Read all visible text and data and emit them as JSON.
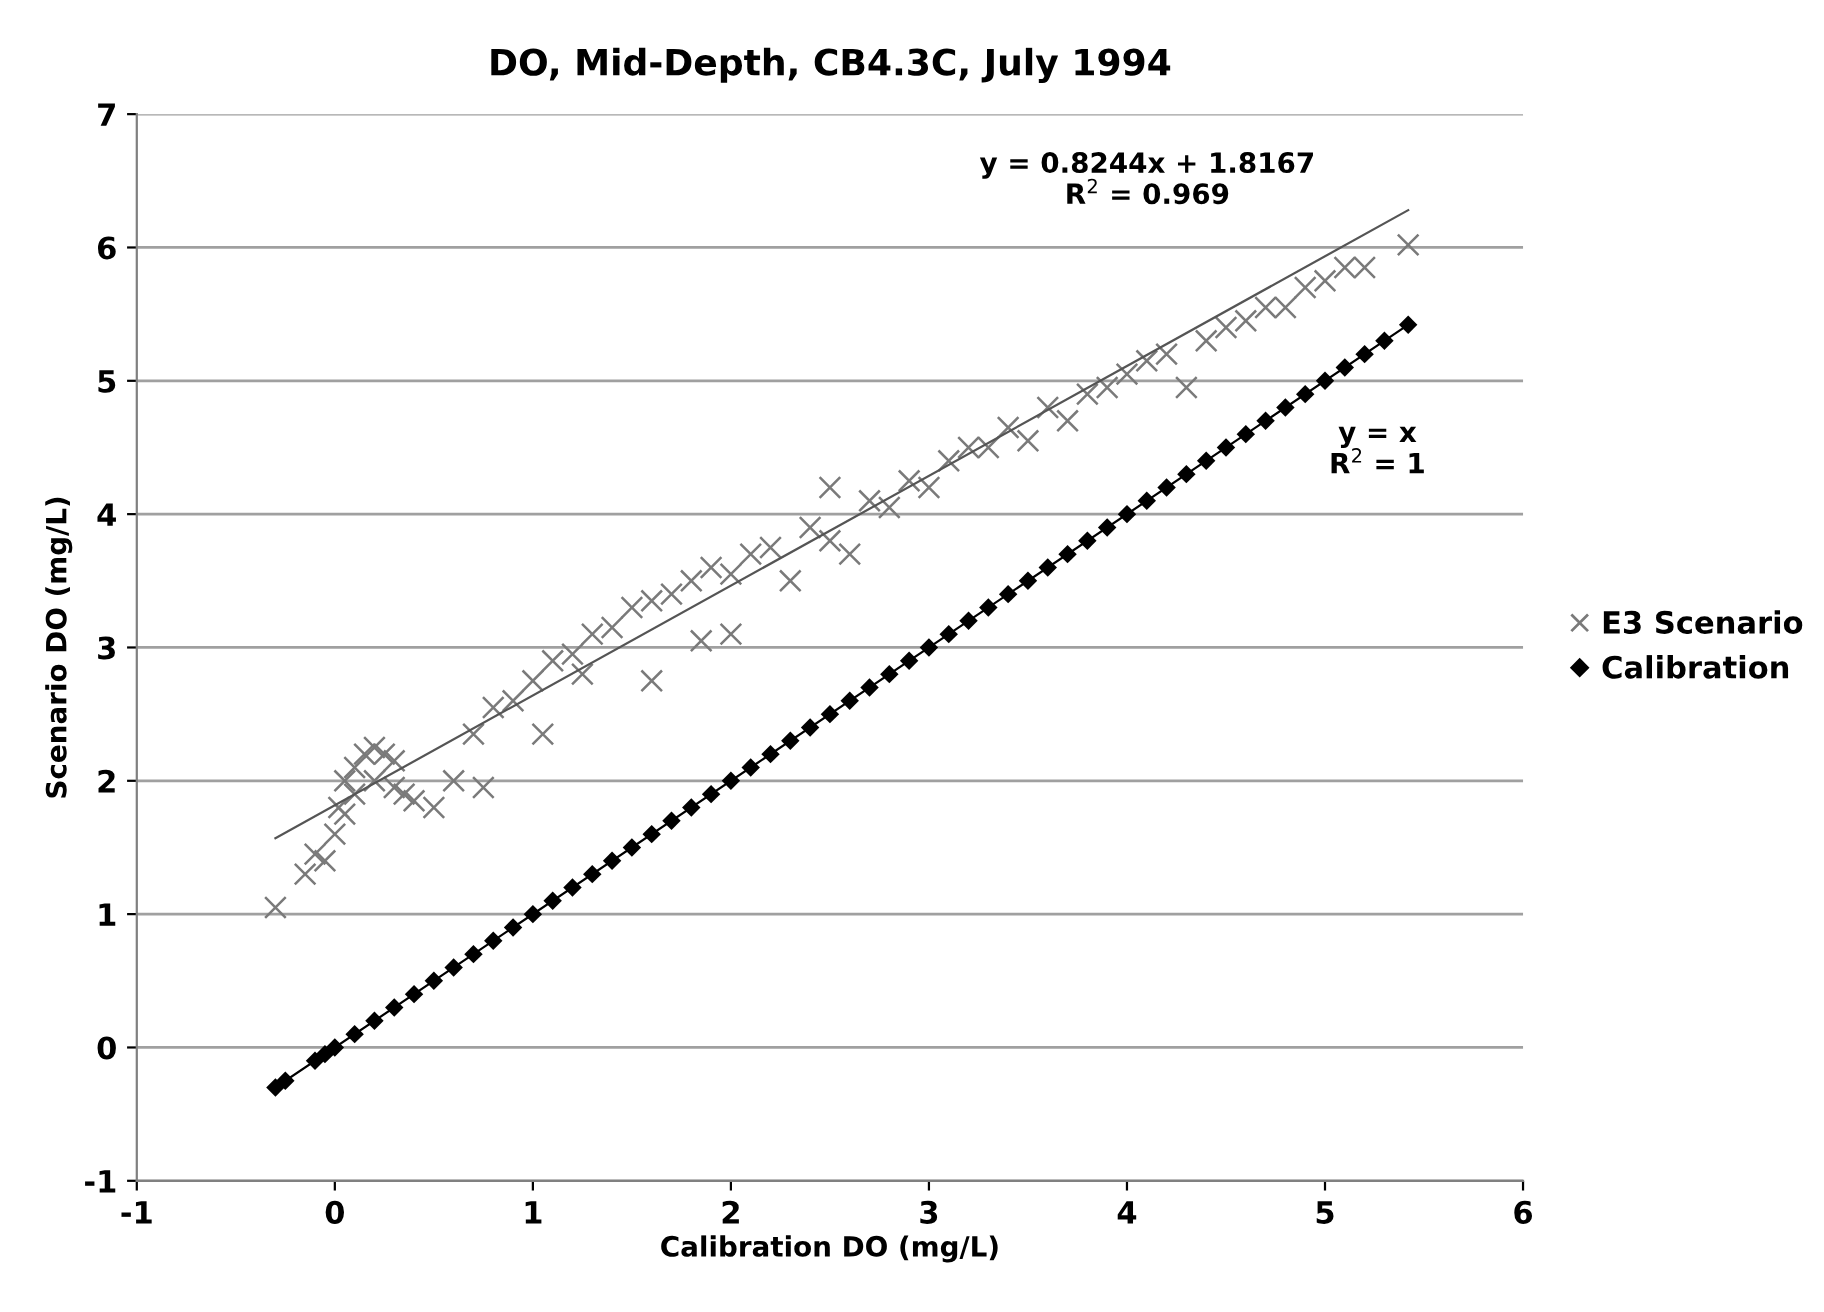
{
  "chart_data": {
    "type": "scatter",
    "title": "DO, Mid-Depth, CB4.3C, July 1994",
    "xlabel": "Calibration DO (mg/L)",
    "ylabel": "Scenario DO (mg/L)",
    "xlim": [
      -1,
      6
    ],
    "ylim": [
      -1,
      7
    ],
    "xticks": [
      -1,
      0,
      1,
      2,
      3,
      4,
      5,
      6
    ],
    "yticks": [
      -1,
      0,
      1,
      2,
      3,
      4,
      5,
      6,
      7
    ],
    "grid": "y",
    "legend": "right",
    "series": [
      {
        "name": "E3 Scenario",
        "color": "#7a7a7a",
        "marker": "cross",
        "x": [
          -0.3,
          -0.15,
          -0.1,
          -0.05,
          0,
          0.02,
          0.05,
          0.1,
          0.15,
          0.2,
          0.25,
          0.3,
          0.05,
          0.1,
          0.2,
          0.3,
          0.35,
          0.4,
          0.5,
          0.6,
          0.7,
          0.75,
          0.8,
          0.9,
          1.0,
          1.05,
          1.1,
          1.2,
          1.3,
          1.25,
          1.4,
          1.5,
          1.6,
          1.6,
          1.7,
          1.8,
          1.85,
          1.9,
          2.0,
          2.0,
          2.1,
          2.2,
          2.3,
          2.4,
          2.5,
          2.5,
          2.6,
          2.7,
          2.8,
          2.9,
          3.0,
          3.1,
          3.2,
          3.3,
          3.4,
          3.5,
          3.6,
          3.7,
          3.8,
          3.9,
          4.0,
          4.1,
          4.2,
          4.3,
          4.4,
          4.5,
          4.6,
          4.7,
          4.8,
          4.9,
          5.0,
          5.1,
          5.2,
          5.42
        ],
        "values": [
          1.05,
          1.3,
          1.45,
          1.4,
          1.6,
          1.8,
          2.0,
          2.1,
          2.2,
          2.25,
          2.2,
          2.15,
          1.75,
          1.9,
          2.0,
          1.95,
          1.9,
          1.85,
          1.8,
          2.0,
          2.35,
          1.95,
          2.55,
          2.6,
          2.75,
          2.35,
          2.9,
          2.95,
          3.1,
          2.8,
          3.15,
          3.3,
          2.75,
          3.35,
          3.4,
          3.5,
          3.05,
          3.6,
          3.55,
          3.1,
          3.7,
          3.75,
          3.5,
          3.9,
          3.8,
          4.2,
          3.7,
          4.1,
          4.05,
          4.25,
          4.2,
          4.4,
          4.5,
          4.5,
          4.65,
          4.55,
          4.8,
          4.7,
          4.9,
          4.95,
          5.05,
          5.15,
          5.2,
          4.95,
          5.3,
          5.4,
          5.45,
          5.55,
          5.55,
          5.7,
          5.75,
          5.85,
          5.85,
          6.02
        ]
      },
      {
        "name": "Calibration",
        "color": "#000000",
        "marker": "diamond",
        "x": [
          -0.3,
          -0.25,
          -0.1,
          -0.05,
          0,
          0.1,
          0.2,
          0.3,
          0.4,
          0.5,
          0.6,
          0.7,
          0.8,
          0.9,
          1.0,
          1.1,
          1.2,
          1.3,
          1.4,
          1.5,
          1.6,
          1.7,
          1.8,
          1.9,
          2.0,
          2.1,
          2.2,
          2.3,
          2.4,
          2.5,
          2.6,
          2.7,
          2.8,
          2.9,
          3.0,
          3.1,
          3.2,
          3.3,
          3.4,
          3.5,
          3.6,
          3.7,
          3.8,
          3.9,
          4.0,
          4.1,
          4.2,
          4.3,
          4.4,
          4.5,
          4.6,
          4.7,
          4.8,
          4.9,
          5.0,
          5.1,
          5.2,
          5.3,
          5.42
        ],
        "values": [
          -0.3,
          -0.25,
          -0.1,
          -0.05,
          0,
          0.1,
          0.2,
          0.3,
          0.4,
          0.5,
          0.6,
          0.7,
          0.8,
          0.9,
          1.0,
          1.1,
          1.2,
          1.3,
          1.4,
          1.5,
          1.6,
          1.7,
          1.8,
          1.9,
          2.0,
          2.1,
          2.2,
          2.3,
          2.4,
          2.5,
          2.6,
          2.7,
          2.8,
          2.9,
          3.0,
          3.1,
          3.2,
          3.3,
          3.4,
          3.5,
          3.6,
          3.7,
          3.8,
          3.9,
          4.0,
          4.1,
          4.2,
          4.3,
          4.4,
          4.5,
          4.6,
          4.7,
          4.8,
          4.9,
          5.0,
          5.1,
          5.2,
          5.3,
          5.42
        ]
      },
      {
        "type": "line",
        "color": "#555555",
        "x": [
          -0.3,
          5.42
        ],
        "values": [
          1.57,
          6.28
        ]
      },
      {
        "type": "line",
        "color": "#000000",
        "x": [
          -0.3,
          5.42
        ],
        "values": [
          -0.3,
          5.42
        ]
      }
    ],
    "annotations": [
      "y = 0.8244x + 1.8167\nR$^{2}$ = 0.969",
      "y = x\nR$^{2}$ = 1"
    ]
  }
}
